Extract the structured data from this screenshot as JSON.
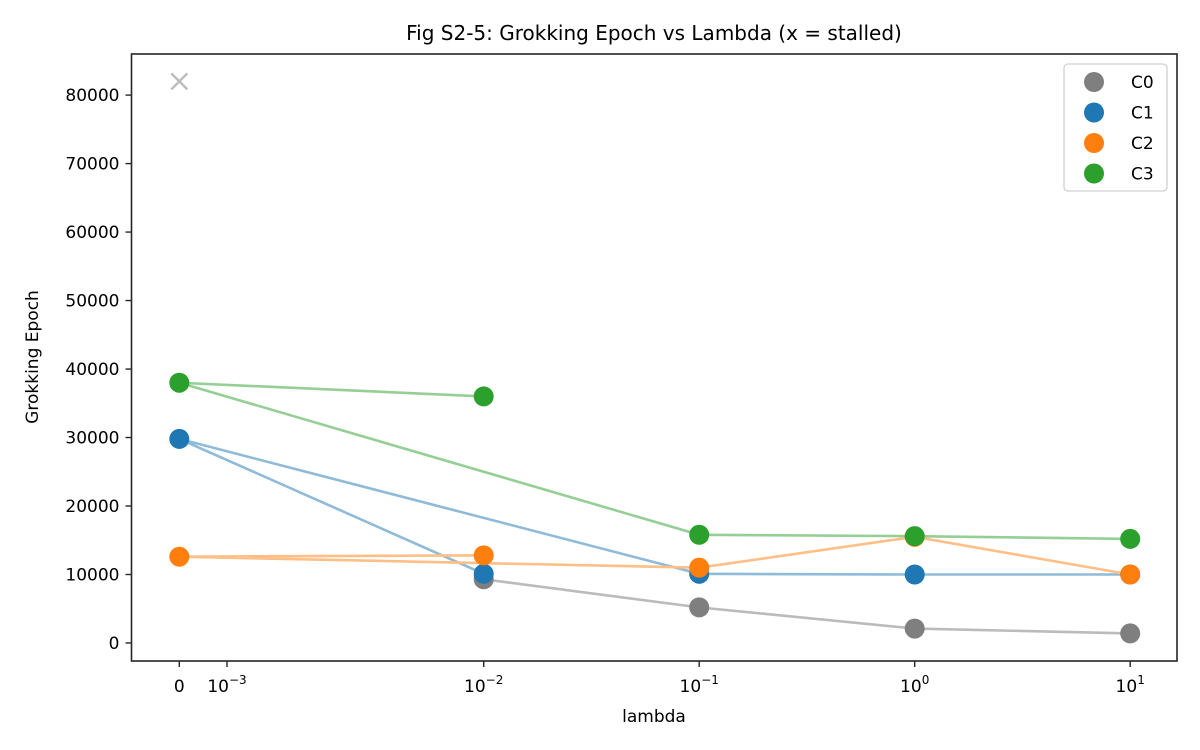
{
  "chart_data": {
    "type": "scatter",
    "title": "Fig S2-5: Grokking Epoch vs Lambda (x = stalled)",
    "xlabel": "lambda",
    "ylabel": "Grokking Epoch",
    "xscale": "symlog",
    "ylim": [
      -2630,
      86000
    ],
    "grid": false,
    "legend_position": "top-right",
    "x_ticks": [
      {
        "value": 0,
        "label": "0",
        "sup": ""
      },
      {
        "value": 0.001,
        "label": "10",
        "sup": "−3"
      },
      {
        "value": 0.01,
        "label": "10",
        "sup": "−2"
      },
      {
        "value": 0.1,
        "label": "10",
        "sup": "−1"
      },
      {
        "value": 1,
        "label": "10",
        "sup": "0"
      },
      {
        "value": 10,
        "label": "10",
        "sup": "1"
      }
    ],
    "y_ticks": [
      {
        "value": 0,
        "label": "0"
      },
      {
        "value": 10000,
        "label": "10000"
      },
      {
        "value": 20000,
        "label": "20000"
      },
      {
        "value": 30000,
        "label": "30000"
      },
      {
        "value": 40000,
        "label": "40000"
      },
      {
        "value": 50000,
        "label": "50000"
      },
      {
        "value": 60000,
        "label": "60000"
      },
      {
        "value": 70000,
        "label": "70000"
      },
      {
        "value": 80000,
        "label": "80000"
      }
    ],
    "series": [
      {
        "name": "C0",
        "color": "#7f7f7f",
        "line_color": "#bbbbbb",
        "x": [
          0.01,
          0.1,
          1,
          10
        ],
        "y": [
          9300,
          5200,
          2100,
          1400
        ],
        "stalled": [
          {
            "x": 0,
            "y": 82000
          }
        ]
      },
      {
        "name": "C1",
        "color": "#1f77b4",
        "line_color": "#8fbbd9",
        "x": [
          0.01,
          0,
          0.1,
          1,
          10
        ],
        "y": [
          10100,
          29800,
          10100,
          10000,
          10000
        ],
        "stalled": []
      },
      {
        "name": "C2",
        "color": "#ff7f0e",
        "line_color": "#ffbf86",
        "x": [
          0.01,
          0,
          0.1,
          1,
          10
        ],
        "y": [
          12800,
          12600,
          11000,
          15500,
          10000
        ],
        "stalled": []
      },
      {
        "name": "C3",
        "color": "#2ca02c",
        "line_color": "#95cf95",
        "x": [
          0.01,
          0,
          0.1,
          1,
          10
        ],
        "y": [
          36000,
          38000,
          15800,
          15600,
          15200
        ],
        "stalled": []
      }
    ]
  }
}
